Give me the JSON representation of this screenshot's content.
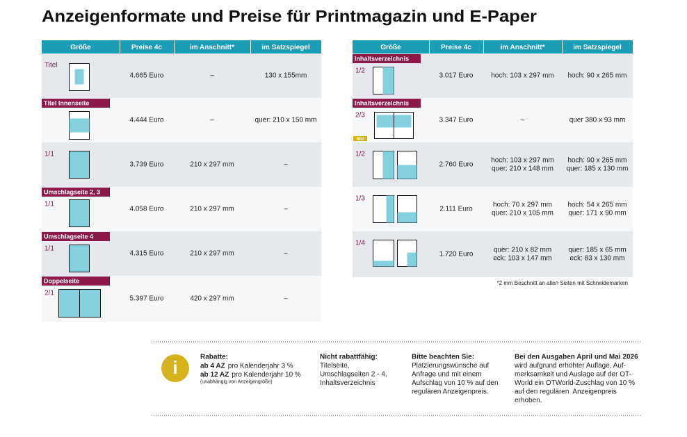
{
  "title": "Anzeigenformate und Preise für Printmagazin und E-Paper",
  "left_table": {
    "headers": [
      "Größe",
      "Preise 4c",
      "im Anschnitt*",
      "im Satzspiegel"
    ],
    "rows": [
      {
        "size": "Titel",
        "price": "4.665 Euro",
        "anschnitt": [
          "–"
        ],
        "satzspiegel": [
          "130 x 155mm"
        ]
      },
      {
        "label": "Titel Innenseite",
        "price": "4.444 Euro",
        "anschnitt": [
          "–"
        ],
        "satzspiegel": [
          "quer: 210 x 150 mm"
        ]
      },
      {
        "size": "1/1",
        "price": "3.739 Euro",
        "anschnitt": [
          "210 x 297 mm"
        ],
        "satzspiegel": [
          "–"
        ]
      },
      {
        "label": "Umschlagseite 2, 3",
        "size": "1/1",
        "price": "4.058 Euro",
        "anschnitt": [
          "210 x 297 mm"
        ],
        "satzspiegel": [
          "–"
        ]
      },
      {
        "label": "Umschlagseite 4",
        "size": "1/1",
        "price": "4.315 Euro",
        "anschnitt": [
          "210 x 297 mm"
        ],
        "satzspiegel": [
          "–"
        ]
      },
      {
        "label": "Doppelseite",
        "size": "2/1",
        "price": "5.397 Euro",
        "anschnitt": [
          "420 x 297 mm"
        ],
        "satzspiegel": [
          "–"
        ]
      }
    ]
  },
  "right_table": {
    "headers": [
      "Größe",
      "Preise 4c",
      "im Anschnitt*",
      "im Satzspiegel"
    ],
    "rows": [
      {
        "label": "Inhaltsverzeichnis",
        "size": "1/2",
        "price": "3.017 Euro",
        "anschnitt": [
          "hoch: 103 x 297 mm"
        ],
        "satzspiegel": [
          "hoch: 90 x 265 mm"
        ]
      },
      {
        "label": "Inhaltsverzeichnis",
        "size": "2/3",
        "badge": "NEU",
        "price": "3.347 Euro",
        "anschnitt": [
          "–"
        ],
        "satzspiegel": [
          "quer 380 x 93 mm"
        ]
      },
      {
        "size": "1/2",
        "price": "2.760 Euro",
        "anschnitt": [
          "hoch: 103 x 297 mm",
          "quer: 210 x 148 mm"
        ],
        "satzspiegel": [
          "hoch: 90 x 265 mm",
          "quer: 185 x 130 mm"
        ]
      },
      {
        "size": "1/3",
        "price": "2.111 Euro",
        "anschnitt": [
          "hoch: 70 x 297 mm",
          "quer: 210 x 105 mm"
        ],
        "satzspiegel": [
          "hoch: 54 x 265 mm",
          "quer: 171 x 90 mm"
        ]
      },
      {
        "size": "1/4",
        "price": "1.720 Euro",
        "anschnitt": [
          "quer: 210 x 82 mm",
          "eck: 103 x 147 mm"
        ],
        "satzspiegel": [
          "quer: 185 x 65 mm",
          "eck: 83 x 130 mm"
        ]
      }
    ],
    "footnote": "*2 mm Beschnitt an allen Seiten mit Schneidemarken"
  },
  "info": {
    "icon": "i",
    "columns": [
      {
        "heading": "Rabatte:",
        "lines": [
          {
            "bold": "ab 4 AZ",
            "text": "pro Kalenderjahr 3 %"
          },
          {
            "bold": "ab 12 AZ",
            "text": "pro Kalenderjahr 10 %"
          }
        ],
        "note": "(unabhängig von Anzeigengröße)"
      },
      {
        "heading": "Nicht rabattfähig:",
        "lines": [
          "Titelseite,",
          "Umschlagseiten 2 - 4,",
          "Inhaltsverzeichnis"
        ]
      },
      {
        "heading": "Bitte beachten Sie:",
        "lines": [
          "Platzierungswünsche auf",
          "Anfrage und mit einem",
          "Aufschlag von 10 % auf den",
          "regulären Anzeigenpreis."
        ]
      },
      {
        "heading": "Bei den Ausgaben April und Mai 2026",
        "lines": [
          "wird aufgrund erhöhter Auflage, Auf-",
          "merksamkeit und Auslage auf der OT-",
          "World ein OTWorld-Zuschlag von 10 %",
          "auf den regulären  Anzeigenpreis",
          "erhoben."
        ]
      }
    ]
  }
}
